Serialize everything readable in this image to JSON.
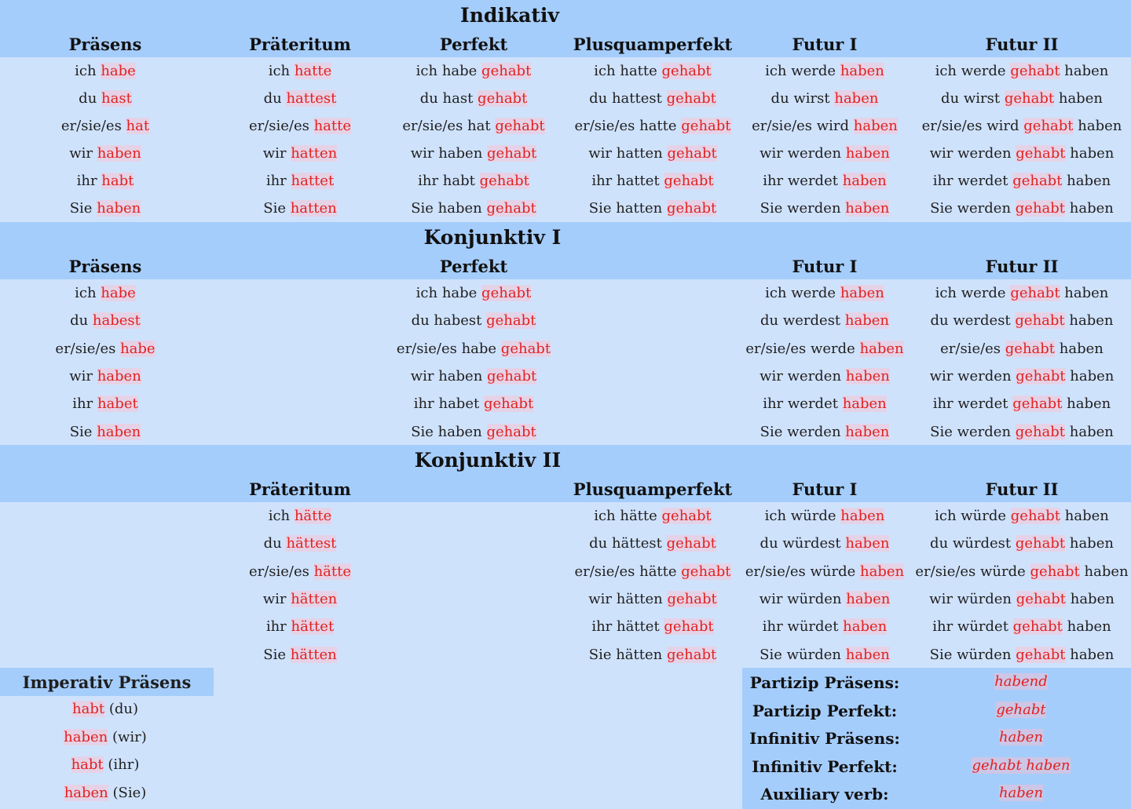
{
  "sections": [
    {
      "title": "Indikativ",
      "columns": [
        {
          "head": "Präsens",
          "rows": [
            [
              "ich ",
              "habe",
              ""
            ],
            [
              "du ",
              "hast",
              ""
            ],
            [
              "er/sie/es ",
              "hat",
              ""
            ],
            [
              "wir ",
              "haben",
              ""
            ],
            [
              "ihr ",
              "habt",
              ""
            ],
            [
              "Sie ",
              "haben",
              ""
            ]
          ]
        },
        {
          "head": "Präteritum",
          "rows": [
            [
              "ich ",
              "hatte",
              ""
            ],
            [
              "du ",
              "hattest",
              ""
            ],
            [
              "er/sie/es ",
              "hatte",
              ""
            ],
            [
              "wir ",
              "hatten",
              ""
            ],
            [
              "ihr ",
              "hattet",
              ""
            ],
            [
              "Sie ",
              "hatten",
              ""
            ]
          ]
        },
        {
          "head": "Perfekt",
          "rows": [
            [
              "ich habe ",
              "gehabt",
              ""
            ],
            [
              "du hast ",
              "gehabt",
              ""
            ],
            [
              "er/sie/es hat ",
              "gehabt",
              ""
            ],
            [
              "wir haben ",
              "gehabt",
              ""
            ],
            [
              "ihr habt ",
              "gehabt",
              ""
            ],
            [
              "Sie haben ",
              "gehabt",
              ""
            ]
          ]
        },
        {
          "head": "Plusquamperfekt",
          "rows": [
            [
              "ich hatte ",
              "gehabt",
              ""
            ],
            [
              "du hattest ",
              "gehabt",
              ""
            ],
            [
              "er/sie/es hatte ",
              "gehabt",
              ""
            ],
            [
              "wir hatten ",
              "gehabt",
              ""
            ],
            [
              "ihr hattet ",
              "gehabt",
              ""
            ],
            [
              "Sie hatten ",
              "gehabt",
              ""
            ]
          ]
        },
        {
          "head": "Futur I",
          "rows": [
            [
              "ich werde ",
              "haben",
              ""
            ],
            [
              "du wirst ",
              "haben",
              ""
            ],
            [
              "er/sie/es wird ",
              "haben",
              ""
            ],
            [
              "wir werden ",
              "haben",
              ""
            ],
            [
              "ihr werdet ",
              "haben",
              ""
            ],
            [
              "Sie werden ",
              "haben",
              ""
            ]
          ]
        },
        {
          "head": "Futur II",
          "rows": [
            [
              "ich werde ",
              "gehabt",
              " haben"
            ],
            [
              "du wirst ",
              "gehabt",
              " haben"
            ],
            [
              "er/sie/es wird ",
              "gehabt",
              " haben"
            ],
            [
              "wir werden ",
              "gehabt",
              " haben"
            ],
            [
              "ihr werdet ",
              "gehabt",
              " haben"
            ],
            [
              "Sie werden ",
              "gehabt",
              " haben"
            ]
          ]
        }
      ]
    },
    {
      "title": "Konjunktiv I",
      "columns": [
        {
          "head": "Präsens",
          "rows": [
            [
              "ich ",
              "habe",
              ""
            ],
            [
              "du ",
              "habest",
              ""
            ],
            [
              "er/sie/es ",
              "habe",
              ""
            ],
            [
              "wir ",
              "haben",
              ""
            ],
            [
              "ihr ",
              "habet",
              ""
            ],
            [
              "Sie ",
              "haben",
              ""
            ]
          ]
        },
        {
          "head": "",
          "rows": []
        },
        {
          "head": "Perfekt",
          "rows": [
            [
              "ich habe ",
              "gehabt",
              ""
            ],
            [
              "du habest ",
              "gehabt",
              ""
            ],
            [
              "er/sie/es habe ",
              "gehabt",
              ""
            ],
            [
              "wir haben ",
              "gehabt",
              ""
            ],
            [
              "ihr habet ",
              "gehabt",
              ""
            ],
            [
              "Sie haben ",
              "gehabt",
              ""
            ]
          ]
        },
        {
          "head": "",
          "rows": []
        },
        {
          "head": "Futur I",
          "rows": [
            [
              "ich werde ",
              "haben",
              ""
            ],
            [
              "du werdest ",
              "haben",
              ""
            ],
            [
              "er/sie/es werde ",
              "haben",
              ""
            ],
            [
              "wir werden ",
              "haben",
              ""
            ],
            [
              "ihr werdet ",
              "haben",
              ""
            ],
            [
              "Sie werden ",
              "haben",
              ""
            ]
          ]
        },
        {
          "head": "Futur II",
          "rows": [
            [
              "ich werde ",
              "gehabt",
              " haben"
            ],
            [
              "du werdest ",
              "gehabt",
              " haben"
            ],
            [
              "er/sie/es ",
              "gehabt",
              " haben"
            ],
            [
              "wir werden ",
              "gehabt",
              " haben"
            ],
            [
              "ihr werdet ",
              "gehabt",
              " haben"
            ],
            [
              "Sie werden ",
              "gehabt",
              " haben"
            ]
          ]
        }
      ]
    },
    {
      "title": "Konjunktiv II",
      "columns": [
        {
          "head": "",
          "rows": []
        },
        {
          "head": "Präteritum",
          "rows": [
            [
              "ich ",
              "hätte",
              ""
            ],
            [
              "du ",
              "hättest",
              ""
            ],
            [
              "er/sie/es ",
              "hätte",
              ""
            ],
            [
              "wir ",
              "hätten",
              ""
            ],
            [
              "ihr ",
              "hättet",
              ""
            ],
            [
              "Sie ",
              "hätten",
              ""
            ]
          ]
        },
        {
          "head": "",
          "rows": []
        },
        {
          "head": "Plusquamperfekt",
          "rows": [
            [
              "ich hätte ",
              "gehabt",
              ""
            ],
            [
              "du hättest ",
              "gehabt",
              ""
            ],
            [
              "er/sie/es hätte ",
              "gehabt",
              ""
            ],
            [
              "wir hätten ",
              "gehabt",
              ""
            ],
            [
              "ihr hättet ",
              "gehabt",
              ""
            ],
            [
              "Sie hätten ",
              "gehabt",
              ""
            ]
          ]
        },
        {
          "head": "Futur I",
          "rows": [
            [
              "ich würde ",
              "haben",
              ""
            ],
            [
              "du würdest ",
              "haben",
              ""
            ],
            [
              "er/sie/es würde ",
              "haben",
              ""
            ],
            [
              "wir würden ",
              "haben",
              ""
            ],
            [
              "ihr würdet ",
              "haben",
              ""
            ],
            [
              "Sie würden ",
              "haben",
              ""
            ]
          ]
        },
        {
          "head": "Futur II",
          "rows": [
            [
              "ich würde ",
              "gehabt",
              " haben"
            ],
            [
              "du würdest ",
              "gehabt",
              " haben"
            ],
            [
              "er/sie/es würde ",
              "gehabt",
              " haben"
            ],
            [
              "wir würden ",
              "gehabt",
              " haben"
            ],
            [
              "ihr würdet ",
              "gehabt",
              " haben"
            ],
            [
              "Sie würden ",
              "gehabt",
              " haben"
            ]
          ]
        }
      ]
    }
  ],
  "imperativ": {
    "title": "Imperativ Präsens",
    "rows": [
      [
        "",
        "habt",
        " (du)"
      ],
      [
        "",
        "haben",
        " (wir)"
      ],
      [
        "",
        "habt",
        " (ihr)"
      ],
      [
        "",
        "haben",
        " (Sie)"
      ]
    ]
  },
  "info": [
    {
      "label": "Partizip Präsens:",
      "value": "habend"
    },
    {
      "label": "Partizip Perfekt:",
      "value": "gehabt"
    },
    {
      "label": "Infinitiv Präsens:",
      "value": "haben"
    },
    {
      "label": "Infinitiv Perfekt:",
      "value": "gehabt haben"
    },
    {
      "label": "Auxiliary verb:",
      "value": "haben"
    }
  ],
  "colors": {
    "header_bg": "#a5cdfb",
    "body_bg": "#cfe2fc",
    "highlight_text": "#e02222"
  }
}
